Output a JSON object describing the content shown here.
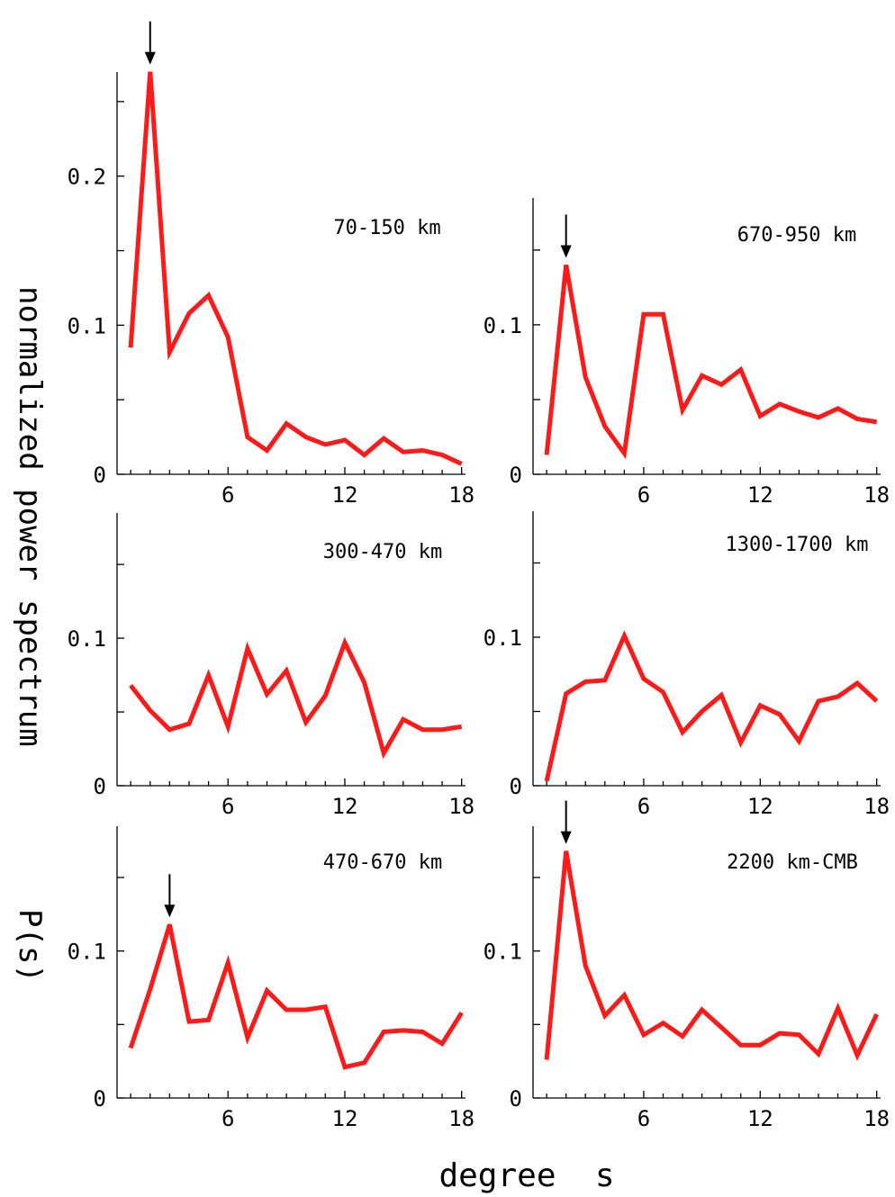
{
  "figure": {
    "ylabel": "normalized power spectrum",
    "ylabel2": "P(s)",
    "xlabel": "degree  s"
  },
  "colors": {
    "series": "#ff1a1a",
    "axes": "#000000"
  },
  "chart_data": [
    {
      "type": "line",
      "title": "70-150 km",
      "x": [
        1,
        2,
        3,
        4,
        5,
        6,
        7,
        8,
        9,
        10,
        11,
        12,
        13,
        14,
        15,
        16,
        17,
        18
      ],
      "series": [
        {
          "values": [
            0.085,
            0.27,
            0.082,
            0.108,
            0.12,
            0.092,
            0.025,
            0.016,
            0.034,
            0.025,
            0.02,
            0.023,
            0.013,
            0.024,
            0.015,
            0.016,
            0.013,
            0.007
          ]
        }
      ],
      "xticks": [
        6,
        12,
        18
      ],
      "yticks": [
        0,
        0.1,
        0.2
      ],
      "ytick_labels": [
        "0",
        "0.1",
        "0.2"
      ],
      "xlim": [
        0.3,
        18.2
      ],
      "ylim": [
        0,
        0.265
      ],
      "arrow_at": 2
    },
    {
      "type": "line",
      "title": "670-950 km",
      "x": [
        1,
        2,
        3,
        4,
        5,
        6,
        7,
        8,
        9,
        10,
        11,
        12,
        13,
        14,
        15,
        16,
        17,
        18
      ],
      "series": [
        {
          "values": [
            0.013,
            0.14,
            0.065,
            0.032,
            0.014,
            0.107,
            0.107,
            0.043,
            0.066,
            0.06,
            0.07,
            0.039,
            0.047,
            0.042,
            0.038,
            0.044,
            0.037,
            0.035
          ]
        }
      ],
      "xticks": [
        6,
        12,
        18
      ],
      "yticks": [
        0,
        0.1
      ],
      "ytick_labels": [
        "0",
        "0.1"
      ],
      "xlim": [
        0.3,
        18.2
      ],
      "ylim": [
        0,
        0.18
      ],
      "arrow_at": 2
    },
    {
      "type": "line",
      "title": "300-470 km",
      "x": [
        1,
        2,
        3,
        4,
        5,
        6,
        7,
        8,
        9,
        10,
        11,
        12,
        13,
        14,
        15,
        16,
        17,
        18
      ],
      "series": [
        {
          "values": [
            0.068,
            0.051,
            0.038,
            0.042,
            0.075,
            0.04,
            0.093,
            0.062,
            0.078,
            0.043,
            0.061,
            0.097,
            0.07,
            0.022,
            0.045,
            0.038,
            0.038,
            0.04
          ]
        }
      ],
      "xticks": [
        6,
        12,
        18
      ],
      "yticks": [
        0,
        0.1
      ],
      "ytick_labels": [
        "0",
        "0.1"
      ],
      "xlim": [
        0.3,
        18.2
      ],
      "ylim": [
        0,
        0.18
      ]
    },
    {
      "type": "line",
      "title": "1300-1700 km",
      "x": [
        1,
        2,
        3,
        4,
        5,
        6,
        7,
        8,
        9,
        10,
        11,
        12,
        13,
        14,
        15,
        16,
        17,
        18
      ],
      "series": [
        {
          "values": [
            0.003,
            0.062,
            0.07,
            0.071,
            0.101,
            0.072,
            0.063,
            0.036,
            0.05,
            0.061,
            0.029,
            0.054,
            0.048,
            0.03,
            0.057,
            0.06,
            0.069,
            0.057
          ]
        }
      ],
      "xticks": [
        6,
        12,
        18
      ],
      "yticks": [
        0,
        0.1
      ],
      "ytick_labels": [
        "0",
        "0.1"
      ],
      "xlim": [
        0.3,
        18.2
      ],
      "ylim": [
        0,
        0.18
      ]
    },
    {
      "type": "line",
      "title": "470-670 km",
      "x": [
        1,
        2,
        3,
        4,
        5,
        6,
        7,
        8,
        9,
        10,
        11,
        12,
        13,
        14,
        15,
        16,
        17,
        18
      ],
      "series": [
        {
          "values": [
            0.034,
            0.074,
            0.118,
            0.052,
            0.053,
            0.092,
            0.041,
            0.073,
            0.06,
            0.06,
            0.062,
            0.021,
            0.024,
            0.045,
            0.046,
            0.045,
            0.037,
            0.058
          ]
        }
      ],
      "xticks": [
        6,
        12,
        18
      ],
      "yticks": [
        0,
        0.1
      ],
      "ytick_labels": [
        "0",
        "0.1"
      ],
      "xlim": [
        0.3,
        18.2
      ],
      "ylim": [
        0,
        0.18
      ],
      "arrow_at": 3
    },
    {
      "type": "line",
      "title": "2200 km-CMB",
      "x": [
        1,
        2,
        3,
        4,
        5,
        6,
        7,
        8,
        9,
        10,
        11,
        12,
        13,
        14,
        15,
        16,
        17,
        18
      ],
      "series": [
        {
          "values": [
            0.026,
            0.168,
            0.09,
            0.056,
            0.07,
            0.043,
            0.051,
            0.042,
            0.06,
            0.048,
            0.036,
            0.036,
            0.044,
            0.043,
            0.03,
            0.061,
            0.029,
            0.057
          ]
        }
      ],
      "xticks": [
        6,
        12,
        18
      ],
      "yticks": [
        0,
        0.1
      ],
      "ytick_labels": [
        "0",
        "0.1"
      ],
      "xlim": [
        0.3,
        18.2
      ],
      "ylim": [
        0,
        0.18
      ],
      "arrow_at": 2
    }
  ]
}
